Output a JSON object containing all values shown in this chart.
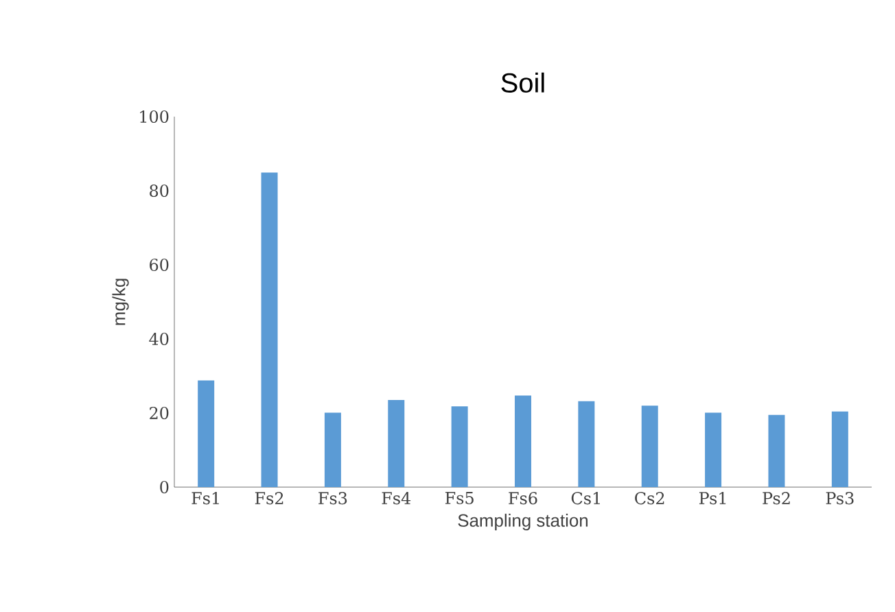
{
  "chart_data": {
    "type": "bar",
    "title": "Soil",
    "xlabel": "Sampling station",
    "ylabel": "mg/kg",
    "categories": [
      "Fs1",
      "Fs2",
      "Fs3",
      "Fs4",
      "Fs5",
      "Fs6",
      "Cs1",
      "Cs2",
      "Ps1",
      "Ps2",
      "Ps3"
    ],
    "values": [
      28.8,
      84.9,
      20.1,
      23.5,
      21.8,
      24.7,
      23.2,
      22.0,
      20.1,
      19.5,
      20.4
    ],
    "color": "#5b9bd5",
    "ylim": [
      0,
      100
    ],
    "yticks": [
      0,
      20,
      40,
      60,
      80,
      100
    ],
    "grid": false
  }
}
